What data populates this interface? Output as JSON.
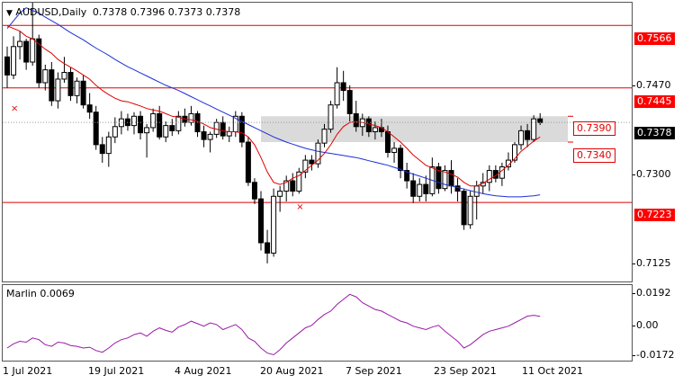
{
  "header": {
    "symbol_label": "AUDUSD,Daily",
    "ohlc_text": "0.7378 0.7396 0.7373 0.7378"
  },
  "indicator": {
    "label": "Marlin 0.0069"
  },
  "price_axis": {
    "ticks": [
      "0.7470",
      "0.7300",
      "0.7125"
    ],
    "tick_values": [
      0.747,
      0.73,
      0.7125
    ],
    "level_tags": [
      {
        "text": "0.7566",
        "value": 0.7566
      },
      {
        "text": "0.7445",
        "value": 0.7445
      },
      {
        "text": "0.7223",
        "value": 0.7223
      }
    ],
    "current_price": "0.7378",
    "current_value": 0.7378
  },
  "zone_labels": {
    "upper": "0.7390",
    "lower": "0.7340"
  },
  "indicator_axis": {
    "ticks": [
      "0.0192",
      "0.00",
      "-0.0172"
    ],
    "tick_values": [
      0.0192,
      0.0,
      -0.0172
    ]
  },
  "time_axis": {
    "labels": [
      "1 Jul 2021",
      "19 Jul 2021",
      "4 Aug 2021",
      "20 Aug 2021",
      "7 Sep 2021",
      "23 Sep 2021",
      "11 Oct 2021"
    ]
  },
  "colors": {
    "levels": "#e00000",
    "fast_ma": "#e00000",
    "slow_ma": "#1a2fd6",
    "zone": "#d3d3d3",
    "oscillator": "#9a1aa8",
    "candle": "#000000"
  },
  "icons": {
    "menu": "triangle-down-icon",
    "marker": "red-x-marker"
  },
  "chart_data": {
    "type": "candlestick",
    "price_range": [
      0.707,
      0.761
    ],
    "levels": [
      0.7566,
      0.7445,
      0.7223
    ],
    "zone": {
      "upper": 0.739,
      "lower": 0.734
    },
    "candles": [
      [
        0.7505,
        0.7525,
        0.7445,
        0.747
      ],
      [
        0.747,
        0.7545,
        0.7462,
        0.7525
      ],
      [
        0.7525,
        0.7555,
        0.75,
        0.7535
      ],
      [
        0.7535,
        0.754,
        0.748,
        0.7495
      ],
      [
        0.7495,
        0.761,
        0.7488,
        0.754
      ],
      [
        0.754,
        0.7548,
        0.7445,
        0.7455
      ],
      [
        0.7455,
        0.749,
        0.744,
        0.748
      ],
      [
        0.748,
        0.7495,
        0.741,
        0.742
      ],
      [
        0.742,
        0.7475,
        0.7405,
        0.7462
      ],
      [
        0.7462,
        0.7505,
        0.7455,
        0.7475
      ],
      [
        0.7475,
        0.7485,
        0.742,
        0.743
      ],
      [
        0.743,
        0.7465,
        0.7415,
        0.7458
      ],
      [
        0.7458,
        0.747,
        0.7405,
        0.7412
      ],
      [
        0.7412,
        0.7435,
        0.7385,
        0.7398
      ],
      [
        0.7398,
        0.741,
        0.7325,
        0.7335
      ],
      [
        0.7335,
        0.735,
        0.73,
        0.7318
      ],
      [
        0.7318,
        0.736,
        0.7292,
        0.735
      ],
      [
        0.735,
        0.7388,
        0.7338,
        0.737
      ],
      [
        0.737,
        0.74,
        0.7355,
        0.7385
      ],
      [
        0.7385,
        0.7395,
        0.7362,
        0.7372
      ],
      [
        0.7372,
        0.7398,
        0.7355,
        0.739
      ],
      [
        0.739,
        0.74,
        0.7345,
        0.7358
      ],
      [
        0.7358,
        0.7375,
        0.731,
        0.7368
      ],
      [
        0.7368,
        0.7405,
        0.736,
        0.7395
      ],
      [
        0.7395,
        0.741,
        0.7345,
        0.735
      ],
      [
        0.735,
        0.738,
        0.734,
        0.7372
      ],
      [
        0.7372,
        0.7385,
        0.7352,
        0.7362
      ],
      [
        0.7362,
        0.74,
        0.7355,
        0.739
      ],
      [
        0.739,
        0.7405,
        0.737,
        0.7378
      ],
      [
        0.7378,
        0.741,
        0.7372,
        0.7395
      ],
      [
        0.7395,
        0.74,
        0.735,
        0.736
      ],
      [
        0.736,
        0.7372,
        0.733,
        0.7345
      ],
      [
        0.7345,
        0.736,
        0.732,
        0.7355
      ],
      [
        0.7355,
        0.7385,
        0.7348,
        0.7378
      ],
      [
        0.7378,
        0.739,
        0.7345,
        0.7352
      ],
      [
        0.7352,
        0.737,
        0.734,
        0.736
      ],
      [
        0.736,
        0.74,
        0.735,
        0.739
      ],
      [
        0.739,
        0.7398,
        0.733,
        0.734
      ],
      [
        0.734,
        0.735,
        0.7255,
        0.7262
      ],
      [
        0.7262,
        0.727,
        0.722,
        0.723
      ],
      [
        0.723,
        0.7245,
        0.713,
        0.7145
      ],
      [
        0.7145,
        0.717,
        0.7105,
        0.7125
      ],
      [
        0.7125,
        0.725,
        0.7118,
        0.7235
      ],
      [
        0.7235,
        0.7255,
        0.7205,
        0.7245
      ],
      [
        0.7245,
        0.7275,
        0.7225,
        0.7265
      ],
      [
        0.7265,
        0.728,
        0.7235,
        0.7245
      ],
      [
        0.7245,
        0.729,
        0.724,
        0.7282
      ],
      [
        0.7282,
        0.7315,
        0.727,
        0.7305
      ],
      [
        0.7305,
        0.7315,
        0.7285,
        0.7298
      ],
      [
        0.7298,
        0.7345,
        0.729,
        0.7338
      ],
      [
        0.7338,
        0.7375,
        0.733,
        0.7365
      ],
      [
        0.7365,
        0.742,
        0.7358,
        0.7412
      ],
      [
        0.7412,
        0.7485,
        0.7405,
        0.7455
      ],
      [
        0.7455,
        0.7478,
        0.742,
        0.744
      ],
      [
        0.744,
        0.745,
        0.738,
        0.7395
      ],
      [
        0.7395,
        0.742,
        0.736,
        0.737
      ],
      [
        0.737,
        0.7395,
        0.7352,
        0.7385
      ],
      [
        0.7385,
        0.739,
        0.735,
        0.736
      ],
      [
        0.736,
        0.738,
        0.7345,
        0.7368
      ],
      [
        0.7368,
        0.7385,
        0.735,
        0.736
      ],
      [
        0.736,
        0.7372,
        0.731,
        0.732
      ],
      [
        0.732,
        0.734,
        0.73,
        0.7328
      ],
      [
        0.7328,
        0.7335,
        0.727,
        0.7285
      ],
      [
        0.7285,
        0.73,
        0.725,
        0.7265
      ],
      [
        0.7265,
        0.728,
        0.7222,
        0.7235
      ],
      [
        0.7235,
        0.727,
        0.7225,
        0.7258
      ],
      [
        0.7258,
        0.7275,
        0.7225,
        0.724
      ],
      [
        0.724,
        0.731,
        0.7235,
        0.7292
      ],
      [
        0.7292,
        0.73,
        0.724,
        0.725
      ],
      [
        0.725,
        0.7295,
        0.7245,
        0.7285
      ],
      [
        0.7285,
        0.7305,
        0.724,
        0.7255
      ],
      [
        0.7255,
        0.727,
        0.7225,
        0.7245
      ],
      [
        0.7245,
        0.725,
        0.717,
        0.718
      ],
      [
        0.718,
        0.7245,
        0.7172,
        0.7235
      ],
      [
        0.7235,
        0.7265,
        0.719,
        0.7255
      ],
      [
        0.7255,
        0.728,
        0.724,
        0.7262
      ],
      [
        0.7262,
        0.7295,
        0.7245,
        0.7285
      ],
      [
        0.7285,
        0.7295,
        0.7262,
        0.727
      ],
      [
        0.727,
        0.73,
        0.7255,
        0.7292
      ],
      [
        0.7292,
        0.732,
        0.7285,
        0.7305
      ],
      [
        0.7305,
        0.734,
        0.73,
        0.7335
      ],
      [
        0.7335,
        0.7372,
        0.7325,
        0.7362
      ],
      [
        0.7362,
        0.7375,
        0.733,
        0.7345
      ],
      [
        0.7345,
        0.7392,
        0.734,
        0.7385
      ],
      [
        0.7385,
        0.7396,
        0.7373,
        0.7378
      ]
    ],
    "fast_ma": [
      0.7565,
      0.756,
      0.7555,
      0.7545,
      0.754,
      0.753,
      0.752,
      0.7512,
      0.75,
      0.7492,
      0.7485,
      0.7478,
      0.747,
      0.7462,
      0.745,
      0.744,
      0.7432,
      0.7425,
      0.742,
      0.7418,
      0.7414,
      0.741,
      0.7405,
      0.7402,
      0.74,
      0.7395,
      0.739,
      0.7388,
      0.7385,
      0.7383,
      0.738,
      0.7375,
      0.7368,
      0.7365,
      0.7362,
      0.736,
      0.736,
      0.7358,
      0.735,
      0.7335,
      0.731,
      0.7282,
      0.7262,
      0.7258,
      0.7262,
      0.727,
      0.7275,
      0.7285,
      0.7295,
      0.7305,
      0.7318,
      0.7335,
      0.7355,
      0.737,
      0.7378,
      0.738,
      0.7378,
      0.7375,
      0.7372,
      0.7368,
      0.736,
      0.735,
      0.734,
      0.7328,
      0.7315,
      0.7305,
      0.7295,
      0.729,
      0.7285,
      0.7282,
      0.7278,
      0.7272,
      0.7262,
      0.7255,
      0.7255,
      0.726,
      0.7268,
      0.7275,
      0.7285,
      0.7295,
      0.7308,
      0.7322,
      0.7332,
      0.7342,
      0.735
    ],
    "slow_ma": [
      0.756,
      0.7575,
      0.759,
      0.76,
      0.7595,
      0.759,
      0.7582,
      0.7575,
      0.7568,
      0.756,
      0.7552,
      0.7545,
      0.7538,
      0.753,
      0.7522,
      0.7515,
      0.7508,
      0.75,
      0.7493,
      0.7486,
      0.748,
      0.7474,
      0.7468,
      0.7462,
      0.7456,
      0.745,
      0.7445,
      0.744,
      0.7434,
      0.7428,
      0.7422,
      0.7416,
      0.741,
      0.7404,
      0.7398,
      0.7392,
      0.7386,
      0.738,
      0.7374,
      0.7368,
      0.7362,
      0.7356,
      0.735,
      0.7345,
      0.734,
      0.7336,
      0.7332,
      0.7328,
      0.7325,
      0.7322,
      0.732,
      0.7318,
      0.7316,
      0.7314,
      0.7312,
      0.731,
      0.7307,
      0.7304,
      0.7301,
      0.7298,
      0.7295,
      0.7291,
      0.7287,
      0.7282,
      0.7278,
      0.7274,
      0.727,
      0.7266,
      0.7262,
      0.7258,
      0.7255,
      0.7252,
      0.7249,
      0.7246,
      0.7243,
      0.724,
      0.7238,
      0.7236,
      0.7235,
      0.7234,
      0.7234,
      0.7234,
      0.7235,
      0.7236,
      0.7238
    ],
    "oscillator": {
      "range": [
        -0.0195,
        0.0255
      ],
      "values": [
        -0.012,
        -0.0095,
        -0.008,
        -0.0085,
        -0.006,
        -0.007,
        -0.01,
        -0.011,
        -0.0085,
        -0.009,
        -0.0105,
        -0.011,
        -0.012,
        -0.0115,
        -0.0135,
        -0.0145,
        -0.012,
        -0.009,
        -0.007,
        -0.006,
        -0.004,
        -0.003,
        -0.005,
        -0.002,
        0.0,
        -0.0015,
        -0.0025,
        0.0005,
        0.002,
        0.004,
        0.0025,
        0.001,
        0.003,
        0.002,
        -0.001,
        0.0005,
        0.002,
        -0.001,
        -0.006,
        -0.008,
        -0.012,
        -0.015,
        -0.016,
        -0.013,
        -0.009,
        -0.006,
        -0.003,
        0.0,
        0.0015,
        0.005,
        0.008,
        0.01,
        0.014,
        0.017,
        0.02,
        0.0185,
        0.015,
        0.013,
        0.011,
        0.01,
        0.008,
        0.006,
        0.004,
        0.003,
        0.001,
        0.0,
        -0.001,
        0.0005,
        0.0015,
        -0.002,
        -0.005,
        -0.008,
        -0.012,
        -0.01,
        -0.007,
        -0.004,
        -0.002,
        -0.001,
        0.0,
        0.001,
        0.003,
        0.005,
        0.007,
        0.0075,
        0.0069
      ]
    }
  }
}
